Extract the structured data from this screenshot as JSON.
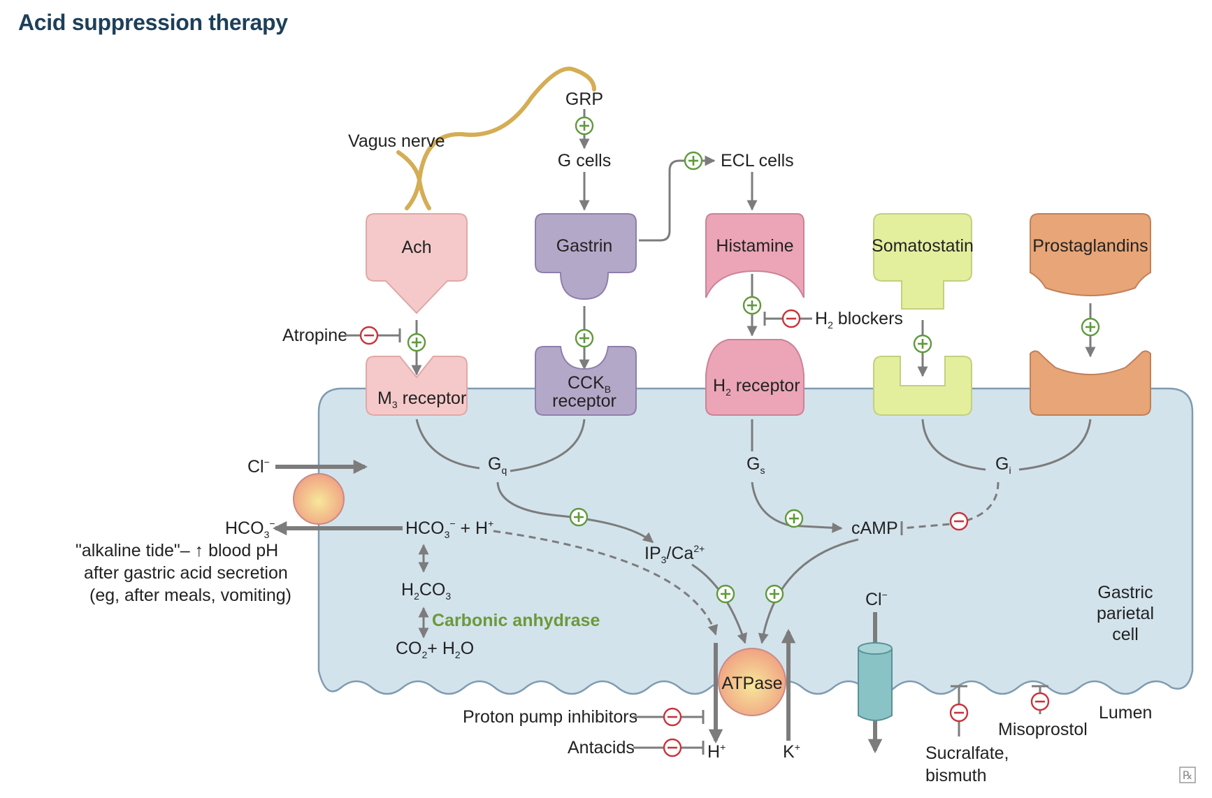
{
  "title": "Acid suppression therapy",
  "watermark": "℞",
  "colors": {
    "cell_fill": "#d3e3ec",
    "cell_stroke": "#7f9bb0",
    "ach": "#f5c9c9",
    "gastrin": "#b4a8c8",
    "histamine": "#eba5b6",
    "somatostatin": "#e4ef9e",
    "prostaglandins": "#e8a577",
    "nerve": "#d4ad55",
    "stimulate": "#5f9a3c",
    "inhibit": "#c9333a",
    "carbonic_anhydrase_text": "#6a9a3a"
  },
  "nerve": {
    "vagus": "Vagus nerve",
    "grp": "GRP"
  },
  "cells": {
    "g_cells": "G cells",
    "ecl_cells": "ECL cells"
  },
  "ligands": {
    "ach": "Ach",
    "gastrin": "Gastrin",
    "histamine": "Histamine",
    "somatostatin": "Somatostatin",
    "prostaglandins": "Prostaglandins"
  },
  "receptors": {
    "m3_main": "M",
    "m3_sub": "3",
    "m3_rest": " receptor",
    "cck_main": "CCK",
    "cck_sub": "B",
    "cck_line2": "receptor",
    "h2_main": "H",
    "h2_sub": "2",
    "h2_rest": " receptor"
  },
  "drugs": {
    "atropine": "Atropine",
    "h2_main": "H",
    "h2_sub": "2",
    "h2_rest": " blockers",
    "ppi": "Proton pump inhibitors",
    "antacids": "Antacids",
    "sucralfate_1": "Sucralfate,",
    "sucralfate_2": "bismuth",
    "misoprostol": "Misoprostol"
  },
  "signaling": {
    "gq_main": "G",
    "gq_sub": "q",
    "gs_main": "G",
    "gs_sub": "s",
    "gi_main": "G",
    "gi_sub": "i",
    "ip3_a": "IP",
    "ip3_sub": "3",
    "ip3_b": "/Ca",
    "ip3_sup": "2+",
    "camp": "cAMP",
    "atpase": "ATPase"
  },
  "ions": {
    "cl": "Cl",
    "minus": "−",
    "hco3_a": "HCO",
    "hco3_sub": "3",
    "plus_h": " + H",
    "plus_sign": "+",
    "h_plus": "H",
    "k_plus": "K",
    "h2co3_a": "H",
    "h2co3_sub": "2",
    "h2co3_b": "CO",
    "h2co3_sub2": "3",
    "co2_a": "CO",
    "co2_sub": "2",
    "co2_b": "+ H",
    "co2_sub2": "2",
    "co2_c": "O",
    "carbonic_anhydrase": "Carbonic anhydrase"
  },
  "alkaline": {
    "line1_a": "\"alkaline tide\"– ",
    "line1_arrow": "↑",
    "line1_b": " blood pH",
    "line2": "after gastric acid secretion",
    "line3": "(eg, after meals, vomiting)"
  },
  "regions": {
    "cell_1": "Gastric",
    "cell_2": "parietal",
    "cell_3": "cell",
    "lumen": "Lumen"
  }
}
